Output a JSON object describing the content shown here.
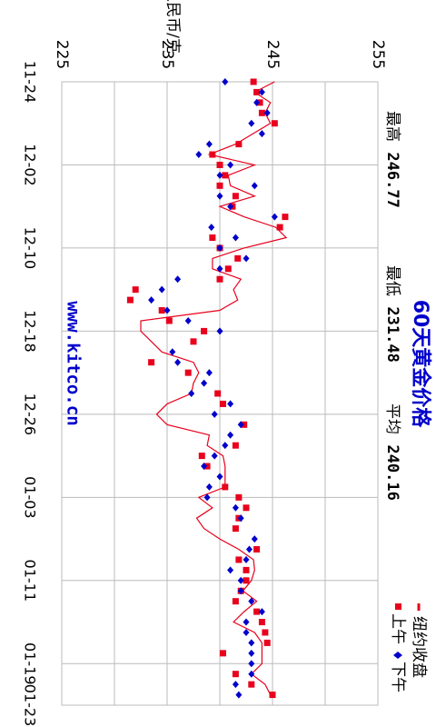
{
  "chart_data": {
    "type": "line",
    "title": "60天黄金价格",
    "ylabel": "人民币/克",
    "website": "www.kitco.cn",
    "stats": {
      "high_label": "最高",
      "high_value": "246.77",
      "low_label": "最低",
      "low_value": "231.48",
      "avg_label": "平均",
      "avg_value": "240.16"
    },
    "ylim": [
      225,
      255
    ],
    "ytick_labels": [
      "225",
      "235",
      "245",
      "255"
    ],
    "xtick_labels": [
      "11-24",
      "12-02",
      "12-10",
      "12-18",
      "12-26",
      "01-03",
      "01-11",
      "01-19",
      "01-23"
    ],
    "xlim": [
      0,
      60
    ],
    "legend": {
      "placement": "bottom-right",
      "items": [
        {
          "label": "纽约收盘",
          "color": "#e8001c",
          "marker": "line"
        },
        {
          "label": "上午",
          "color": "#e8001c",
          "marker": "square"
        },
        {
          "label": "下午",
          "color": "#0000cc",
          "marker": "diamond"
        }
      ]
    },
    "colors": {
      "close": "#e8001c",
      "am": "#e8001c",
      "pm": "#0000cc",
      "grid": "#bbbbbb",
      "title": "#0000cc"
    },
    "series": [
      {
        "name": "纽约收盘",
        "x": [
          0,
          1,
          2,
          3,
          4,
          6,
          7,
          8,
          9,
          10,
          11,
          12,
          13,
          14,
          15,
          16,
          17,
          18,
          19,
          20,
          21,
          22,
          23,
          24,
          25,
          26,
          27,
          28,
          29,
          30,
          31,
          32,
          33,
          34,
          35,
          36,
          37,
          38,
          39,
          40,
          41,
          42,
          43,
          44,
          45,
          46,
          47,
          48,
          49,
          50,
          51,
          52,
          53,
          54,
          55,
          56,
          57,
          58,
          59
        ],
        "y": [
          245.2,
          243.3,
          244.8,
          244.3,
          244.8,
          241.5,
          239.0,
          243.3,
          240.8,
          241.0,
          243.3,
          240.0,
          242.3,
          245.3,
          246.3,
          242.3,
          239.3,
          239.3,
          242.0,
          241.3,
          241.7,
          240.0,
          232.5,
          232.5,
          233.5,
          234.5,
          237.5,
          238.0,
          237.5,
          237.3,
          235.0,
          234.0,
          235.0,
          239.0,
          238.8,
          240.3,
          240.5,
          240.5,
          240.5,
          238.0,
          239.3,
          237.8,
          238.5,
          240.0,
          241.8,
          243.2,
          243.3,
          243.0,
          242.2,
          243.5,
          242.3,
          241.3,
          243.3,
          244.0,
          244.0,
          244.0,
          243.0,
          244.3,
          244.8
        ]
      },
      {
        "name": "上午",
        "x": [
          0,
          1,
          2,
          3,
          4,
          6,
          7,
          8,
          9,
          10,
          11,
          12,
          13,
          14,
          15,
          16,
          17,
          18,
          19,
          20,
          21,
          22,
          23,
          24,
          25,
          27,
          28,
          30,
          31,
          33,
          35,
          36,
          37,
          39,
          40,
          41,
          42,
          43,
          45,
          46,
          47,
          48,
          49,
          50,
          51,
          52,
          53,
          54,
          55,
          57,
          58,
          59
        ],
        "y": [
          243.2,
          243.5,
          243.8,
          244.0,
          245.2,
          241.8,
          239.3,
          240.0,
          240.5,
          240.0,
          241.5,
          241.2,
          246.2,
          245.7,
          239.3,
          240.0,
          241.7,
          240.8,
          240.0,
          232.0,
          231.5,
          234.5,
          235.2,
          238.5,
          237.5,
          233.5,
          237.0,
          239.8,
          240.3,
          242.3,
          241.5,
          238.3,
          238.8,
          240.5,
          241.8,
          242.5,
          241.8,
          241.5,
          243.5,
          241.8,
          242.5,
          242.5,
          242.0,
          241.5,
          243.5,
          244.0,
          244.3,
          244.5,
          240.3,
          241.5,
          243.0,
          245.0
        ]
      },
      {
        "name": "下午",
        "x": [
          0,
          1,
          2,
          3,
          4,
          5,
          6,
          7,
          8,
          9,
          10,
          11,
          12,
          13,
          14,
          15,
          16,
          17,
          18,
          19,
          20,
          21,
          22,
          23,
          24,
          26,
          27,
          28,
          29,
          30,
          31,
          32,
          33,
          34,
          35,
          36,
          37,
          38,
          39,
          40,
          41,
          42,
          44,
          45,
          46,
          47,
          48,
          49,
          50,
          51,
          52,
          53,
          54,
          55,
          56,
          57,
          58,
          59
        ],
        "y": [
          240.5,
          244.0,
          243.5,
          244.5,
          243.0,
          244.0,
          239.0,
          238.0,
          241.0,
          240.0,
          243.3,
          240.0,
          241.0,
          245.2,
          239.2,
          241.5,
          240.0,
          242.5,
          240.0,
          236.0,
          234.5,
          233.5,
          235.0,
          237.0,
          240.0,
          235.5,
          236.0,
          239.0,
          238.5,
          237.3,
          241.0,
          239.5,
          242.0,
          241.0,
          240.5,
          239.5,
          238.5,
          240.0,
          239.0,
          238.8,
          241.5,
          242.0,
          243.3,
          242.8,
          242.5,
          241.0,
          242.0,
          242.0,
          243.0,
          244.0,
          242.5,
          242.5,
          243.0,
          243.0,
          243.0,
          243.0,
          241.5,
          241.8
        ]
      }
    ]
  }
}
